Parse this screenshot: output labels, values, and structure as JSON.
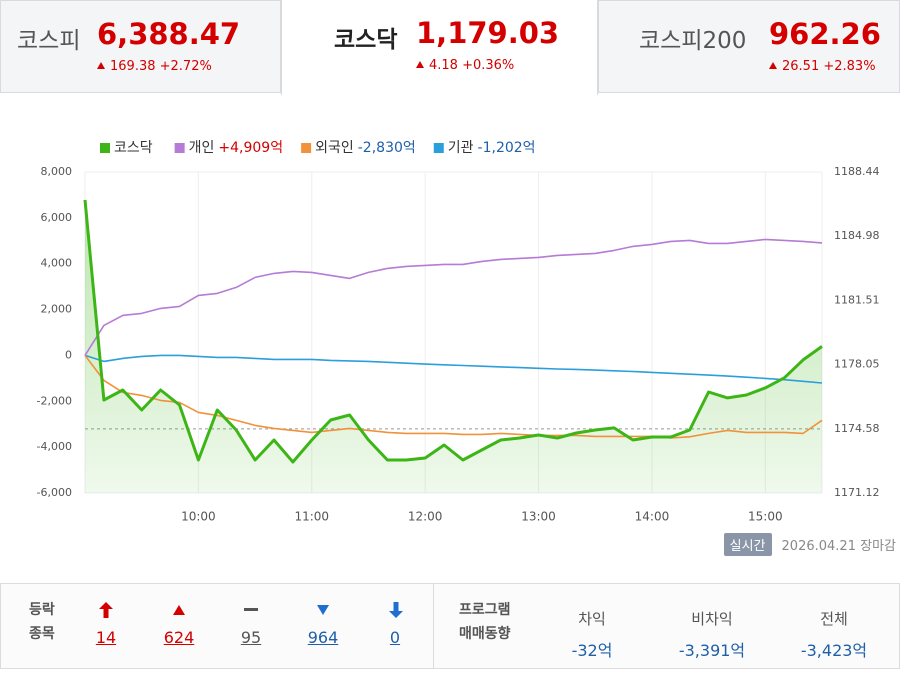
{
  "tabs": [
    {
      "name": "코스피",
      "value": "6,388.47",
      "change": "169.38",
      "rate": "+2.72%"
    },
    {
      "name": "코스닥",
      "value": "1,179.03",
      "change": "4.18",
      "rate": "+0.36%"
    },
    {
      "name": "코스피200",
      "value": "962.26",
      "change": "26.51",
      "rate": "+2.83%"
    }
  ],
  "chart_data": {
    "type": "line",
    "x": [
      "09:00",
      "09:10",
      "09:20",
      "09:30",
      "09:40",
      "09:50",
      "10:00",
      "10:10",
      "10:20",
      "10:30",
      "10:40",
      "10:50",
      "11:00",
      "11:10",
      "11:20",
      "11:30",
      "11:40",
      "11:50",
      "12:00",
      "12:10",
      "12:20",
      "12:30",
      "12:40",
      "12:50",
      "13:00",
      "13:10",
      "13:20",
      "13:30",
      "13:40",
      "13:50",
      "14:00",
      "14:10",
      "14:20",
      "14:30",
      "14:40",
      "14:50",
      "15:00",
      "15:10",
      "15:20",
      "15:30"
    ],
    "xlim": [
      "09:00",
      "15:30"
    ],
    "xticks": [
      "10:00",
      "11:00",
      "12:00",
      "13:00",
      "14:00",
      "15:00"
    ],
    "ylim": [
      -6000,
      8000
    ],
    "yticks": [
      {
        "value": 8000,
        "label": "8,000"
      },
      {
        "value": 6000,
        "label": "6,000"
      },
      {
        "value": 4000,
        "label": "4,000"
      },
      {
        "value": 2000,
        "label": "2,000"
      },
      0,
      {
        "value": -2000,
        "label": "-2,000"
      },
      {
        "value": -4000,
        "label": "-4,000"
      },
      {
        "value": -6000,
        "label": "-6,000"
      }
    ],
    "y2lim": [
      1171.12,
      1188.44
    ],
    "y2ticks": [
      1188.44,
      1184.98,
      1181.51,
      1178.05,
      1174.58,
      1171.12
    ],
    "series": [
      {
        "name": "코스닥",
        "color": "#3db517",
        "axis": "y2",
        "area": true,
        "values": [
          1186.93,
          1176.14,
          1176.68,
          1175.6,
          1176.68,
          1175.87,
          1172.9,
          1175.6,
          1174.52,
          1172.9,
          1173.98,
          1172.79,
          1173.98,
          1175.06,
          1175.33,
          1173.98,
          1172.9,
          1172.9,
          1173.01,
          1173.71,
          1172.9,
          1173.44,
          1173.98,
          1174.09,
          1174.25,
          1174.09,
          1174.36,
          1174.52,
          1174.63,
          1173.98,
          1174.14,
          1174.14,
          1174.52,
          1176.57,
          1176.25,
          1176.41,
          1176.79,
          1177.33,
          1178.3,
          1179.03
        ]
      },
      {
        "name": "개인",
        "total": "+4,909억",
        "total_color": "#d40000",
        "color": "#b57bd6",
        "values": [
          0,
          1308,
          1744,
          1832,
          2050,
          2137,
          2617,
          2704,
          2966,
          3402,
          3576,
          3663,
          3620,
          3489,
          3358,
          3620,
          3794,
          3881,
          3925,
          3969,
          3969,
          4099,
          4187,
          4230,
          4274,
          4361,
          4405,
          4448,
          4579,
          4754,
          4841,
          4972,
          5015,
          4884,
          4884,
          4972,
          5059,
          5015,
          4972,
          4909
        ]
      },
      {
        "name": "외국인",
        "total": "-2,830억",
        "total_color": "#1f5fa8",
        "color": "#f0923a",
        "values": [
          0,
          -1090,
          -1614,
          -1744,
          -1962,
          -2050,
          -2486,
          -2617,
          -2835,
          -3053,
          -3184,
          -3271,
          -3358,
          -3271,
          -3184,
          -3271,
          -3358,
          -3402,
          -3402,
          -3402,
          -3445,
          -3445,
          -3402,
          -3445,
          -3489,
          -3489,
          -3489,
          -3532,
          -3532,
          -3532,
          -3532,
          -3600,
          -3550,
          -3402,
          -3271,
          -3358,
          -3358,
          -3358,
          -3402,
          -2830
        ]
      },
      {
        "name": "기관",
        "total": "-1,202억",
        "total_color": "#1f5fa8",
        "color": "#2a9fdc",
        "values": [
          0,
          -262,
          -131,
          -44,
          0,
          0,
          -44,
          -87,
          -87,
          -131,
          -174,
          -174,
          -174,
          -218,
          -240,
          -262,
          -300,
          -340,
          -380,
          -410,
          -440,
          -470,
          -500,
          -530,
          -560,
          -590,
          -610,
          -640,
          -670,
          -700,
          -740,
          -780,
          -820,
          -860,
          -900,
          -950,
          -1000,
          -1060,
          -1130,
          -1202
        ]
      }
    ]
  },
  "status": {
    "badge": "실시간",
    "date": "2026.04.21",
    "session": "장마감"
  },
  "breadth": {
    "label": [
      "등락",
      "종목"
    ],
    "counts": [
      "14",
      "624",
      "95",
      "964",
      "0"
    ]
  },
  "program": {
    "label": [
      "프로그램",
      "매매동향"
    ],
    "columns": [
      {
        "name": "차익",
        "value": "-32억"
      },
      {
        "name": "비차익",
        "value": "-3,391억"
      },
      {
        "name": "전체",
        "value": "-3,423억"
      }
    ]
  }
}
